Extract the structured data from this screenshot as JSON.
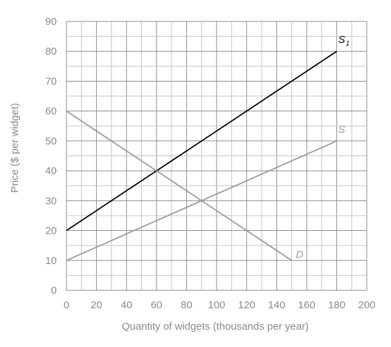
{
  "chart_data": {
    "type": "line",
    "title": "",
    "xlabel": "Quantity of widgets (thousands per year)",
    "ylabel": "Price ($ per widget)",
    "xlim": [
      0,
      200
    ],
    "ylim": [
      0,
      90
    ],
    "x_ticks": [
      0,
      20,
      40,
      60,
      80,
      100,
      120,
      140,
      160,
      180,
      200
    ],
    "y_ticks": [
      0,
      10,
      20,
      30,
      40,
      50,
      60,
      70,
      80,
      90
    ],
    "grid": true,
    "grid_minor_step_x": 10,
    "grid_minor_step_y": 5,
    "series": [
      {
        "name": "S",
        "subscript": "1",
        "color": "#000000",
        "points": [
          [
            0,
            20
          ],
          [
            180,
            80
          ]
        ]
      },
      {
        "name": "S",
        "subscript": "",
        "color": "#9a9a9a",
        "points": [
          [
            0,
            10
          ],
          [
            180,
            50
          ]
        ]
      },
      {
        "name": "D",
        "subscript": "",
        "color": "#9a9a9a",
        "points": [
          [
            0,
            60
          ],
          [
            150,
            10
          ]
        ]
      }
    ]
  }
}
